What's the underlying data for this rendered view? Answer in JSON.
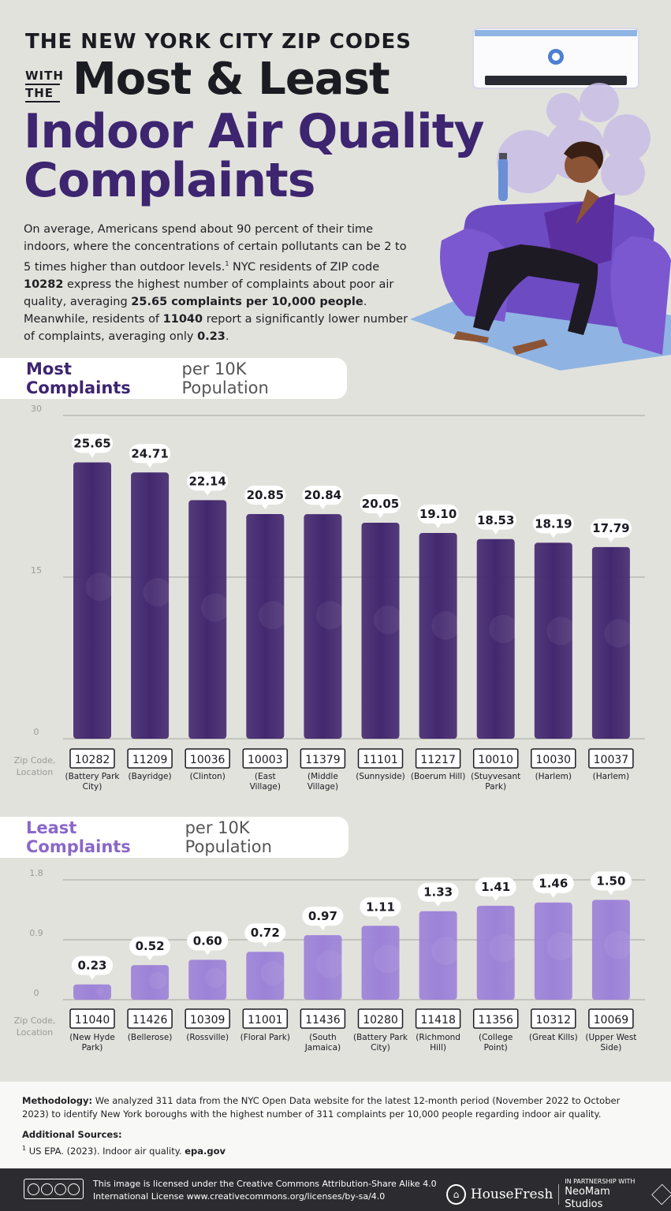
{
  "header": {
    "title_line1": "THE NEW YORK CITY ZIP CODES",
    "with_the_1": "WITH",
    "with_the_2": "THE",
    "title_line2": "Most & Least",
    "title_line3": "Indoor Air Quality",
    "title_line4": "Complaints"
  },
  "intro": {
    "p1": "On average, Americans spend about 90 percent of their time indoors, where the concentrations of certain pollutants can be 2 to 5 times higher than outdoor levels.",
    "footnote_mark": "1",
    "p2": " NYC residents of ZIP code ",
    "zip_high": "10282",
    "p3": " express the highest number of complaints about poor air quality, averaging ",
    "avg_high": "25.65 complaints per 10,000 people",
    "p4": ". Meanwhile, residents of ",
    "zip_low": "11040",
    "p5": " report a significantly lower number of complaints, averaging only ",
    "avg_low": "0.23",
    "p6": "."
  },
  "sections": {
    "most_strong": "Most Complaints",
    "most_rest": "per 10K Population",
    "least_strong": "Least Complaints",
    "least_rest": "per 10K Population"
  },
  "axis_label": [
    "Zip Code,",
    "Location"
  ],
  "colors": {
    "most_bar": "#43286f",
    "least_bar": "#9d82d8",
    "title_purple": "#3d2570",
    "light_purple": "#8a67c9"
  },
  "chart_data": [
    {
      "type": "bar",
      "title": "Most Complaints per 10K Population",
      "xlabel": "Zip Code, Location",
      "ylim": [
        0,
        30
      ],
      "yticks": [
        0,
        15,
        30
      ],
      "categories": [
        "10282",
        "11209",
        "10036",
        "10003",
        "11379",
        "11101",
        "11217",
        "10010",
        "10030",
        "10037"
      ],
      "locations": [
        "(Battery Park City)",
        "(Bayridge)",
        "(Clinton)",
        "(East Village)",
        "(Middle Village)",
        "(Sunnyside)",
        "(Boerum Hill)",
        "(Stuyvesant Park)",
        "(Harlem)",
        "(Harlem)"
      ],
      "values": [
        25.65,
        24.71,
        22.14,
        20.85,
        20.84,
        20.05,
        19.1,
        18.53,
        18.19,
        17.79
      ],
      "labels": [
        "25.65",
        "24.71",
        "22.14",
        "20.85",
        "20.84",
        "20.05",
        "19.10",
        "18.53",
        "18.19",
        "17.79"
      ],
      "grid": true
    },
    {
      "type": "bar",
      "title": "Least Complaints per 10K Population",
      "xlabel": "Zip Code, Location",
      "ylim": [
        0,
        1.8
      ],
      "yticks": [
        0,
        0.9,
        1.8
      ],
      "categories": [
        "11040",
        "11426",
        "10309",
        "11001",
        "11436",
        "10280",
        "11418",
        "11356",
        "10312",
        "10069"
      ],
      "locations": [
        "(New Hyde Park)",
        "(Bellerose)",
        "(Rossville)",
        "(Floral Park)",
        "(South Jamaica)",
        "(Battery Park City)",
        "(Richmond Hill)",
        "(College Point)",
        "(Great Kills)",
        "(Upper West Side)"
      ],
      "values": [
        0.23,
        0.52,
        0.6,
        0.72,
        0.97,
        1.11,
        1.33,
        1.41,
        1.46,
        1.5
      ],
      "labels": [
        "0.23",
        "0.52",
        "0.60",
        "0.72",
        "0.97",
        "1.11",
        "1.33",
        "1.41",
        "1.46",
        "1.50"
      ],
      "grid": true
    }
  ],
  "methodology": {
    "label": "Methodology:",
    "text": " We analyzed 311 data from the NYC Open Data website for the latest 12-month period (November 2022 to October 2023) to identify New York boroughs with the highest number of 311 complaints per 10,000 people regarding indoor air quality."
  },
  "sources": {
    "label": "Additional Sources:",
    "mark": "1",
    "text": " US EPA. (2023). Indoor air quality. ",
    "link": "epa.gov"
  },
  "footer": {
    "license_line1": "This image is licensed under the Creative Commons Attribution-Share Alike 4.0",
    "license_line2": "International License www.creativecommons.org/licenses/by-sa/4.0",
    "brand": "HouseFresh",
    "partner_small": "IN PARTNERSHIP WITH",
    "partner_name": "NeoMam Studios"
  }
}
